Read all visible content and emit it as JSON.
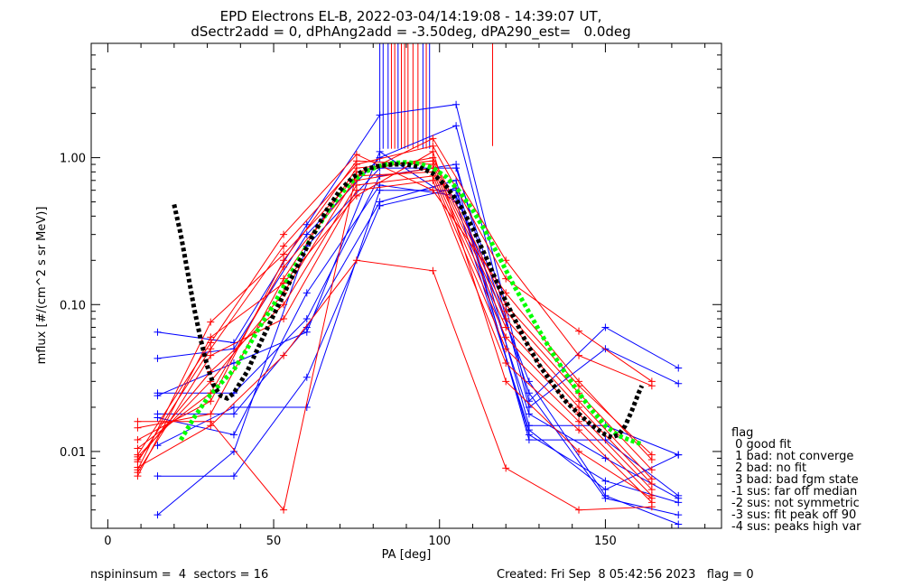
{
  "chart_data": {
    "type": "line",
    "title": "EPD Electrons EL-B, 2022-03-04/14:19:08 - 14:39:07 UT,",
    "subtitle": "dSectr2add = 0, dPhAng2add = -3.50deg, dPA290_est=   0.0deg",
    "xlabel": "PA [deg]",
    "ylabel": "mflux [#/(cm^2 s sr MeV)]",
    "xlim": [
      -5,
      185
    ],
    "ylim": [
      0.003,
      6
    ],
    "yscale": "log",
    "x_ticks": [
      0,
      50,
      100,
      150
    ],
    "y_ticks": [
      0.01,
      0.1,
      1.0
    ],
    "y_tick_labels": [
      "0.01",
      "0.10",
      "1.00"
    ],
    "colors": {
      "series_a": "#0000ff",
      "series_b": "#ff0000",
      "fit_black": "#000000",
      "fit_green": "#00ff00"
    },
    "series": [
      {
        "color": "blue",
        "points": [
          [
            15,
            0.065
          ],
          [
            38,
            0.055
          ],
          [
            60,
            0.35
          ],
          [
            82,
            1.95
          ],
          [
            105,
            2.3
          ],
          [
            127,
            0.022
          ],
          [
            150,
            0.07
          ],
          [
            172,
            0.037
          ]
        ]
      },
      {
        "color": "blue",
        "points": [
          [
            15,
            0.043
          ],
          [
            38,
            0.05
          ],
          [
            60,
            0.3
          ],
          [
            82,
            1.0
          ],
          [
            105,
            1.65
          ],
          [
            127,
            0.02
          ],
          [
            150,
            0.05
          ],
          [
            172,
            0.029
          ]
        ]
      },
      {
        "color": "blue",
        "points": [
          [
            15,
            0.025
          ],
          [
            38,
            0.025
          ],
          [
            60,
            0.08
          ],
          [
            82,
            0.75
          ],
          [
            105,
            0.9
          ],
          [
            127,
            0.015
          ],
          [
            150,
            0.015
          ],
          [
            172,
            0.0095
          ]
        ]
      },
      {
        "color": "blue",
        "points": [
          [
            15,
            0.018
          ],
          [
            38,
            0.018
          ],
          [
            60,
            0.07
          ],
          [
            82,
            0.5
          ],
          [
            105,
            0.7
          ],
          [
            127,
            0.012
          ],
          [
            150,
            0.012
          ],
          [
            172,
            0.005
          ]
        ]
      },
      {
        "color": "blue",
        "points": [
          [
            15,
            0.0068
          ],
          [
            38,
            0.0068
          ],
          [
            60,
            0.032
          ],
          [
            82,
            0.47
          ],
          [
            105,
            0.62
          ],
          [
            127,
            0.013
          ],
          [
            150,
            0.0063
          ],
          [
            172,
            0.0045
          ]
        ]
      },
      {
        "color": "blue",
        "points": [
          [
            15,
            0.0037
          ],
          [
            38,
            0.01
          ],
          [
            60,
            0.25
          ],
          [
            82,
            0.85
          ],
          [
            105,
            0.85
          ],
          [
            127,
            0.025
          ],
          [
            150,
            0.0048
          ],
          [
            172,
            0.0037
          ]
        ]
      },
      {
        "color": "blue",
        "points": [
          [
            15,
            0.011
          ],
          [
            38,
            0.02
          ],
          [
            60,
            0.02
          ],
          [
            82,
            0.6
          ],
          [
            105,
            0.6
          ],
          [
            127,
            0.018
          ],
          [
            150,
            0.009
          ],
          [
            172,
            0.0048
          ]
        ]
      },
      {
        "color": "blue",
        "points": [
          [
            15,
            0.017
          ],
          [
            38,
            0.013
          ],
          [
            60,
            0.12
          ],
          [
            82,
            0.65
          ],
          [
            105,
            0.55
          ],
          [
            127,
            0.03
          ],
          [
            150,
            0.005
          ],
          [
            172,
            0.0032
          ]
        ]
      },
      {
        "color": "blue",
        "points": [
          [
            15,
            0.024
          ],
          [
            38,
            0.04
          ],
          [
            60,
            0.065
          ],
          [
            82,
            1.1
          ],
          [
            105,
            0.5
          ],
          [
            127,
            0.014
          ],
          [
            150,
            0.0055
          ],
          [
            172,
            0.0095
          ]
        ]
      },
      {
        "color": "red",
        "points": [
          [
            9,
            0.0075
          ],
          [
            31,
            0.076
          ],
          [
            53,
            0.22
          ],
          [
            75,
            0.75
          ],
          [
            98,
            1.35
          ],
          [
            120,
            0.2
          ],
          [
            142,
            0.045
          ],
          [
            164,
            0.028
          ]
        ]
      },
      {
        "color": "red",
        "points": [
          [
            9,
            0.0085
          ],
          [
            31,
            0.05
          ],
          [
            53,
            0.25
          ],
          [
            75,
            0.9
          ],
          [
            98,
            1.2
          ],
          [
            120,
            0.15
          ],
          [
            142,
            0.066
          ],
          [
            164,
            0.03
          ]
        ]
      },
      {
        "color": "red",
        "points": [
          [
            9,
            0.016
          ],
          [
            31,
            0.016
          ],
          [
            53,
            0.004
          ],
          [
            75,
            0.8
          ],
          [
            98,
            1.0
          ],
          [
            120,
            0.1
          ],
          [
            142,
            0.028
          ],
          [
            164,
            0.0095
          ]
        ]
      },
      {
        "color": "red",
        "points": [
          [
            9,
            0.0145
          ],
          [
            31,
            0.018
          ],
          [
            53,
            0.15
          ],
          [
            75,
            0.85
          ],
          [
            98,
            0.95
          ],
          [
            120,
            0.09
          ],
          [
            142,
            0.025
          ],
          [
            164,
            0.0075
          ]
        ]
      },
      {
        "color": "red",
        "points": [
          [
            9,
            0.012
          ],
          [
            31,
            0.022
          ],
          [
            53,
            0.2
          ],
          [
            75,
            0.95
          ],
          [
            98,
            0.9
          ],
          [
            120,
            0.08
          ],
          [
            142,
            0.022
          ],
          [
            164,
            0.0065
          ]
        ]
      },
      {
        "color": "red",
        "points": [
          [
            9,
            0.0105
          ],
          [
            31,
            0.025
          ],
          [
            53,
            0.18
          ],
          [
            75,
            0.7
          ],
          [
            98,
            0.85
          ],
          [
            120,
            0.07
          ],
          [
            142,
            0.02
          ],
          [
            164,
            0.006
          ]
        ]
      },
      {
        "color": "red",
        "points": [
          [
            9,
            0.0092
          ],
          [
            31,
            0.03
          ],
          [
            53,
            0.12
          ],
          [
            75,
            0.75
          ],
          [
            98,
            0.8
          ],
          [
            120,
            0.06
          ],
          [
            142,
            0.018
          ],
          [
            164,
            0.0055
          ]
        ]
      },
      {
        "color": "red",
        "points": [
          [
            9,
            0.0088
          ],
          [
            31,
            0.035
          ],
          [
            53,
            0.1
          ],
          [
            75,
            0.65
          ],
          [
            98,
            0.75
          ],
          [
            120,
            0.05
          ],
          [
            142,
            0.016
          ],
          [
            164,
            0.005
          ]
        ]
      },
      {
        "color": "red",
        "points": [
          [
            9,
            0.0072
          ],
          [
            31,
            0.045
          ],
          [
            53,
            0.08
          ],
          [
            75,
            0.6
          ],
          [
            98,
            0.7
          ],
          [
            120,
            0.04
          ],
          [
            142,
            0.014
          ],
          [
            164,
            0.0045
          ]
        ]
      },
      {
        "color": "red",
        "points": [
          [
            9,
            0.0078
          ],
          [
            31,
            0.015
          ],
          [
            53,
            0.045
          ],
          [
            75,
            0.2
          ],
          [
            98,
            0.17
          ],
          [
            120,
            0.0077
          ],
          [
            142,
            0.004
          ],
          [
            164,
            0.0042
          ]
        ]
      },
      {
        "color": "red",
        "points": [
          [
            9,
            0.0068
          ],
          [
            31,
            0.06
          ],
          [
            53,
            0.14
          ],
          [
            75,
            0.55
          ],
          [
            98,
            1.1
          ],
          [
            120,
            0.03
          ],
          [
            142,
            0.01
          ],
          [
            164,
            0.0048
          ]
        ]
      },
      {
        "color": "red",
        "points": [
          [
            9,
            0.0095
          ],
          [
            31,
            0.055
          ],
          [
            53,
            0.3
          ],
          [
            75,
            1.05
          ],
          [
            98,
            0.6
          ],
          [
            120,
            0.12
          ],
          [
            142,
            0.03
          ],
          [
            164,
            0.0088
          ]
        ]
      }
    ],
    "fit_black": {
      "x": [
        20,
        22,
        24,
        26,
        28,
        30,
        32,
        34,
        36,
        38,
        42,
        46,
        50,
        54,
        58,
        62,
        66,
        70,
        74,
        78,
        82,
        86,
        90,
        94,
        98,
        102,
        106,
        110,
        114,
        118,
        122,
        126,
        130,
        134,
        138,
        142,
        146,
        150,
        152,
        154,
        156,
        158,
        160,
        161
      ],
      "y": [
        0.48,
        0.3,
        0.17,
        0.095,
        0.058,
        0.038,
        0.028,
        0.024,
        0.023,
        0.025,
        0.035,
        0.055,
        0.085,
        0.13,
        0.2,
        0.3,
        0.44,
        0.6,
        0.74,
        0.84,
        0.88,
        0.9,
        0.9,
        0.86,
        0.78,
        0.64,
        0.48,
        0.33,
        0.21,
        0.13,
        0.085,
        0.056,
        0.039,
        0.029,
        0.022,
        0.018,
        0.015,
        0.013,
        0.0125,
        0.013,
        0.015,
        0.019,
        0.025,
        0.028
      ]
    },
    "fit_green": {
      "x": [
        22,
        26,
        30,
        34,
        38,
        42,
        46,
        50,
        54,
        58,
        62,
        66,
        70,
        74,
        78,
        82,
        86,
        90,
        94,
        98,
        102,
        106,
        110,
        114,
        118,
        122,
        126,
        130,
        134,
        138,
        142,
        146,
        150,
        154,
        158,
        161
      ],
      "y": [
        0.012,
        0.017,
        0.023,
        0.029,
        0.036,
        0.05,
        0.072,
        0.1,
        0.145,
        0.21,
        0.3,
        0.42,
        0.56,
        0.7,
        0.81,
        0.88,
        0.92,
        0.93,
        0.91,
        0.85,
        0.74,
        0.59,
        0.44,
        0.31,
        0.21,
        0.14,
        0.097,
        0.067,
        0.047,
        0.034,
        0.025,
        0.019,
        0.015,
        0.0128,
        0.0118,
        0.0112
      ]
    },
    "spikes": [
      {
        "color": "blue",
        "x": 82,
        "bottom": 1.15
      },
      {
        "color": "blue",
        "x": 83,
        "bottom": 1.15
      },
      {
        "color": "blue",
        "x": 84.5,
        "bottom": 1.15
      },
      {
        "color": "red",
        "x": 85.5,
        "bottom": 1.15
      },
      {
        "color": "red",
        "x": 86.5,
        "bottom": 1.15
      },
      {
        "color": "blue",
        "x": 87.5,
        "bottom": 1.15
      },
      {
        "color": "red",
        "x": 88.5,
        "bottom": 1.15
      },
      {
        "color": "red",
        "x": 89.5,
        "bottom": 1.15
      },
      {
        "color": "red",
        "x": 90.5,
        "bottom": 1.15
      },
      {
        "color": "red",
        "x": 92,
        "bottom": 1.15
      },
      {
        "color": "red",
        "x": 93.5,
        "bottom": 1.15
      },
      {
        "color": "blue",
        "x": 95,
        "bottom": 1.15
      },
      {
        "color": "red",
        "x": 96,
        "bottom": 1.15
      },
      {
        "color": "blue",
        "x": 97,
        "bottom": 1.15
      },
      {
        "color": "red",
        "x": 116,
        "bottom": 1.2
      }
    ]
  },
  "legend": {
    "title": "flag",
    "items": [
      " 0 good fit",
      " 1 bad: not converge",
      " 2 bad: no fit",
      " 3 bad: bad fgm state",
      "-1 sus: far off median",
      "-2 sus: not symmetric",
      "-3 sus: fit peak off 90",
      "-4 sus: peaks high var"
    ]
  },
  "footer": {
    "left": "nspininsum =  4  sectors = 16",
    "right": "Created: Fri Sep  8 05:42:56 2023   flag = 0"
  }
}
